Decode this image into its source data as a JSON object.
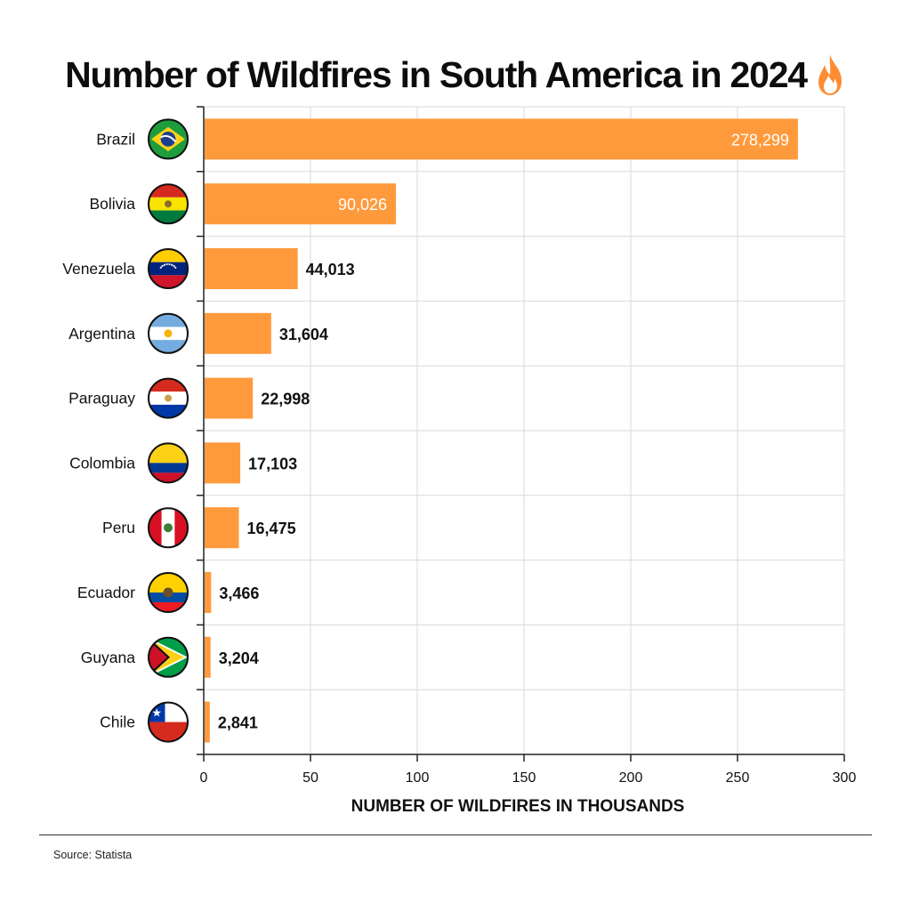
{
  "title": "Number of Wildfires in South America in 2024",
  "title_icon": "fire-icon",
  "source": "Source: Statista",
  "colors": {
    "bar": "#FF9A3C",
    "grid": "#d9d9d9",
    "axis": "#222222",
    "fire": "#FF8C32"
  },
  "chart_data": {
    "type": "bar",
    "orientation": "horizontal",
    "title": "Number of Wildfires in South America in 2024",
    "xlabel": "NUMBER OF WILDFIRES IN THOUSANDS",
    "ylabel": "",
    "xlim": [
      0,
      300
    ],
    "xticks": [
      0,
      50,
      100,
      150,
      200,
      250,
      300
    ],
    "grid": true,
    "categories": [
      "Brazil",
      "Bolivia",
      "Venezuela",
      "Argentina",
      "Paraguay",
      "Colombia",
      "Peru",
      "Ecuador",
      "Guyana",
      "Chile"
    ],
    "values": [
      278299,
      90026,
      44013,
      31604,
      22998,
      17103,
      16475,
      3466,
      3204,
      2841
    ],
    "value_labels": [
      "278,299",
      "90,026",
      "44,013",
      "31,604",
      "22,998",
      "17,103",
      "16,475",
      "3,466",
      "3,204",
      "2,841"
    ],
    "flags": [
      "brazil-flag-icon",
      "bolivia-flag-icon",
      "venezuela-flag-icon",
      "argentina-flag-icon",
      "paraguay-flag-icon",
      "colombia-flag-icon",
      "peru-flag-icon",
      "ecuador-flag-icon",
      "guyana-flag-icon",
      "chile-flag-icon"
    ]
  }
}
